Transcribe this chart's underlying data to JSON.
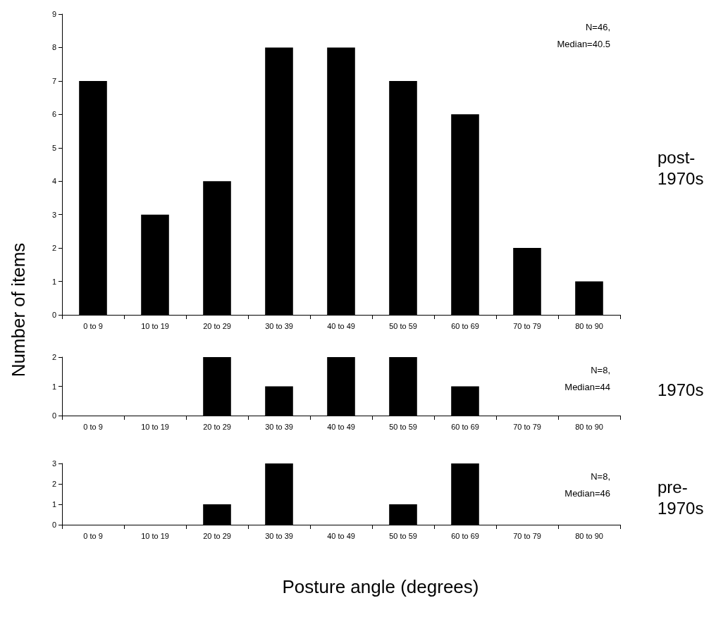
{
  "chart_data": [
    {
      "type": "bar",
      "y2label": "post-1970s",
      "ylabel": "Number of items",
      "categories": [
        "0 to 9",
        "10 to 19",
        "20 to 29",
        "30 to 39",
        "40 to 49",
        "50 to 59",
        "60 to 69",
        "70 to 79",
        "80 to 90"
      ],
      "values": [
        7,
        3,
        4,
        8,
        8,
        7,
        6,
        2,
        1
      ],
      "color": "#000000",
      "ylim": [
        0,
        9
      ],
      "yticks": [
        0,
        1,
        2,
        3,
        4,
        5,
        6,
        7,
        8,
        9
      ],
      "annotations": [
        "N=46,",
        "Median=40.5"
      ],
      "grid": false
    },
    {
      "type": "bar",
      "y2label": "1970s",
      "categories": [
        "0 to 9",
        "10 to 19",
        "20 to 29",
        "30 to 39",
        "40 to 49",
        "50 to 59",
        "60 to 69",
        "70 to 79",
        "80 to 90"
      ],
      "values": [
        0,
        0,
        2,
        1,
        2,
        2,
        1,
        0,
        0
      ],
      "color": "#000000",
      "ylim": [
        0,
        2
      ],
      "yticks": [
        0,
        1,
        2
      ],
      "annotations": [
        "N=8,",
        "Median=44"
      ],
      "grid": false
    },
    {
      "type": "bar",
      "y2label": "pre-1970s",
      "xlabel": "Posture angle (degrees)",
      "categories": [
        "0 to 9",
        "10 to 19",
        "20 to 29",
        "30 to 39",
        "40 to 49",
        "50 to 59",
        "60 to 69",
        "70 to 79",
        "80 to 90"
      ],
      "values": [
        0,
        0,
        1,
        3,
        0,
        1,
        3,
        0,
        0
      ],
      "color": "#000000",
      "ylim": [
        0,
        3
      ],
      "yticks": [
        0,
        1,
        2,
        3
      ],
      "annotations": [
        "N=8,",
        "Median=46"
      ],
      "grid": false
    }
  ]
}
